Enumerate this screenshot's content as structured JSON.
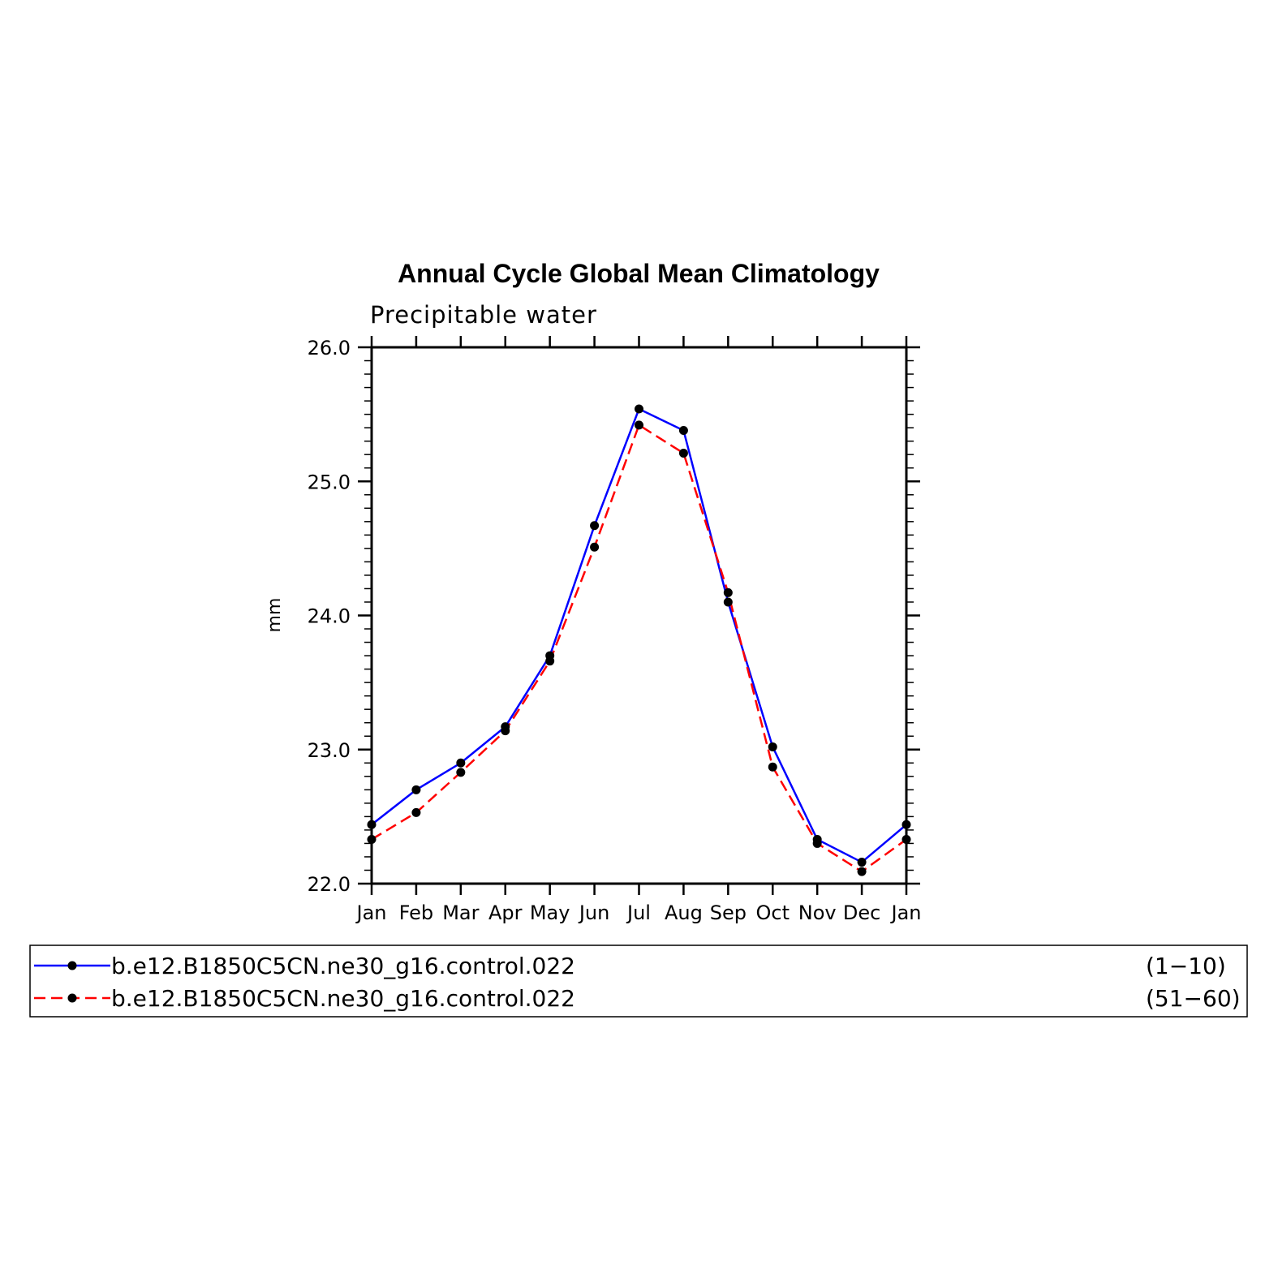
{
  "chart_data": {
    "type": "line",
    "title": "Annual Cycle Global Mean Climatology",
    "subtitle": "Precipitable water",
    "xlabel": "",
    "ylabel": "mm",
    "categories": [
      "Jan",
      "Feb",
      "Mar",
      "Apr",
      "May",
      "Jun",
      "Jul",
      "Aug",
      "Sep",
      "Oct",
      "Nov",
      "Dec",
      "Jan"
    ],
    "ylim": [
      22.0,
      26.0
    ],
    "yticks": [
      "22.0",
      "23.0",
      "24.0",
      "25.0",
      "26.0"
    ],
    "grid": false,
    "legend_position": "bottom",
    "series": [
      {
        "name": "b.e12.B1850C5CN.ne30_g16.control.022",
        "period": "(1−10)",
        "color": "#0000ff",
        "dash": "solid",
        "values": [
          22.44,
          22.7,
          22.9,
          23.17,
          23.7,
          24.67,
          25.54,
          25.38,
          24.1,
          23.02,
          22.33,
          22.16,
          22.44
        ]
      },
      {
        "name": "b.e12.B1850C5CN.ne30_g16.control.022",
        "period": "(51−60)",
        "color": "#ff0000",
        "dash": "dashed",
        "values": [
          22.33,
          22.53,
          22.83,
          23.14,
          23.66,
          24.51,
          25.42,
          25.21,
          24.17,
          22.87,
          22.3,
          22.09,
          22.33
        ]
      }
    ]
  }
}
